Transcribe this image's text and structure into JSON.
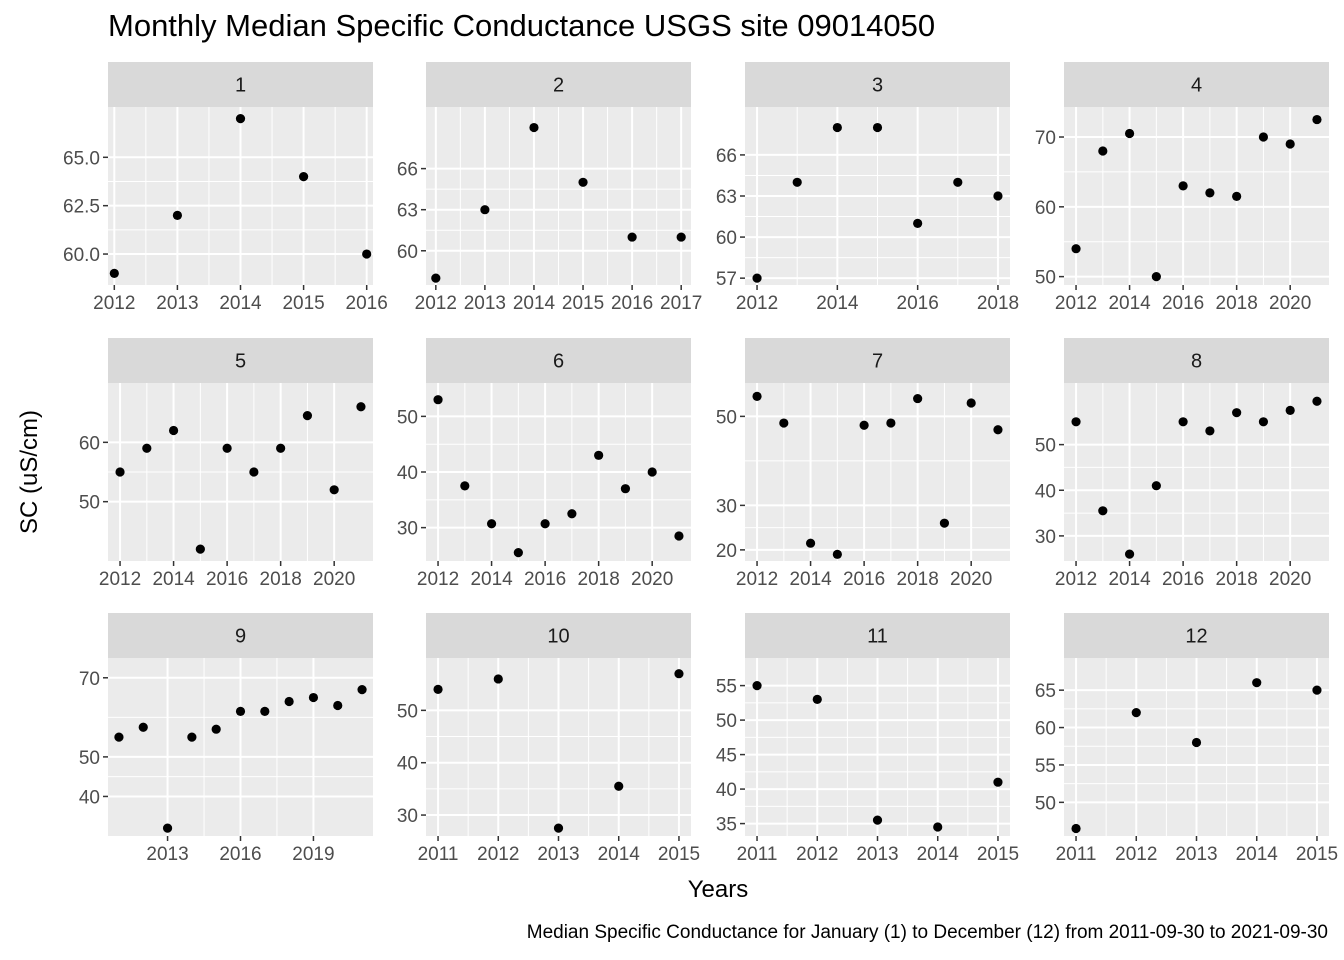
{
  "chart_data": {
    "type": "scatter",
    "title": "Monthly Median Specific Conductance USGS site 09014050",
    "xlabel": "Years",
    "ylabel": "SC (uS/cm)",
    "caption": "Median Specific Conductance for January (1) to December (12) from 2011-09-30 to 2021-09-30",
    "point_color": "#000000",
    "panel_background": "#EBEBEB",
    "strip_background": "#D9D9D9",
    "grid_color": "#FFFFFF",
    "facets": [
      {
        "label": "1",
        "xlim": [
          2011.9,
          2016.1
        ],
        "ylim": [
          58.4,
          67.6
        ],
        "xticks": [
          2012,
          2013,
          2014,
          2015,
          2016
        ],
        "xtick_labels": [
          "2012",
          "2013",
          "2014",
          "2015",
          "2016"
        ],
        "yticks": [
          60,
          62.5,
          65
        ],
        "ytick_labels": [
          "60.0",
          "62.5",
          "65.0"
        ],
        "points": [
          [
            2012,
            59
          ],
          [
            2013,
            62
          ],
          [
            2014,
            67
          ],
          [
            2015,
            64
          ],
          [
            2016,
            60
          ]
        ]
      },
      {
        "label": "2",
        "xlim": [
          2011.8,
          2017.2
        ],
        "ylim": [
          57.5,
          70.5
        ],
        "xticks": [
          2012,
          2013,
          2014,
          2015,
          2016,
          2017
        ],
        "xtick_labels": [
          "2012",
          "2013",
          "2014",
          "2015",
          "2016",
          "2017"
        ],
        "yticks": [
          60,
          63,
          66
        ],
        "ytick_labels": [
          "60",
          "63",
          "66"
        ],
        "points": [
          [
            2012,
            58
          ],
          [
            2013,
            63
          ],
          [
            2014,
            69
          ],
          [
            2015,
            65
          ],
          [
            2016,
            61
          ],
          [
            2017,
            61
          ]
        ]
      },
      {
        "label": "3",
        "xlim": [
          2011.7,
          2018.3
        ],
        "ylim": [
          56.5,
          69.5
        ],
        "xticks": [
          2012,
          2014,
          2016,
          2018
        ],
        "xtick_labels": [
          "2012",
          "2014",
          "2016",
          "2018"
        ],
        "yticks": [
          57,
          60,
          63,
          66
        ],
        "ytick_labels": [
          "57",
          "60",
          "63",
          "66"
        ],
        "points": [
          [
            2012,
            57
          ],
          [
            2013,
            64
          ],
          [
            2014,
            68
          ],
          [
            2015,
            68
          ],
          [
            2016,
            61
          ],
          [
            2017,
            64
          ],
          [
            2018,
            63
          ]
        ]
      },
      {
        "label": "4",
        "xlim": [
          2011.55,
          2021.45
        ],
        "ylim": [
          48.8,
          74.3
        ],
        "xticks": [
          2012,
          2014,
          2016,
          2018,
          2020
        ],
        "xtick_labels": [
          "2012",
          "2014",
          "2016",
          "2018",
          "2020"
        ],
        "yticks": [
          50,
          60,
          70
        ],
        "ytick_labels": [
          "50",
          "60",
          "70"
        ],
        "points": [
          [
            2012,
            54
          ],
          [
            2013,
            68
          ],
          [
            2014,
            70.5
          ],
          [
            2015,
            50
          ],
          [
            2016,
            63
          ],
          [
            2017,
            62
          ],
          [
            2018,
            61.5
          ],
          [
            2019,
            70
          ],
          [
            2020,
            69
          ],
          [
            2021,
            72.5
          ]
        ]
      },
      {
        "label": "5",
        "xlim": [
          2011.55,
          2021.45
        ],
        "ylim": [
          40,
          70
        ],
        "xticks": [
          2012,
          2014,
          2016,
          2018,
          2020
        ],
        "xtick_labels": [
          "2012",
          "2014",
          "2016",
          "2018",
          "2020"
        ],
        "yticks": [
          50,
          60
        ],
        "ytick_labels": [
          "50",
          "60"
        ],
        "points": [
          [
            2012,
            55
          ],
          [
            2013,
            59
          ],
          [
            2014,
            62
          ],
          [
            2015,
            42
          ],
          [
            2016,
            59
          ],
          [
            2017,
            55
          ],
          [
            2018,
            59
          ],
          [
            2019,
            64.5
          ],
          [
            2020,
            52
          ],
          [
            2021,
            66
          ]
        ]
      },
      {
        "label": "6",
        "xlim": [
          2011.55,
          2021.45
        ],
        "ylim": [
          24,
          56
        ],
        "xticks": [
          2012,
          2014,
          2016,
          2018,
          2020
        ],
        "xtick_labels": [
          "2012",
          "2014",
          "2016",
          "2018",
          "2020"
        ],
        "yticks": [
          30,
          40,
          50
        ],
        "ytick_labels": [
          "30",
          "40",
          "50"
        ],
        "points": [
          [
            2012,
            53
          ],
          [
            2013,
            37.5
          ],
          [
            2014,
            30.7
          ],
          [
            2015,
            25.5
          ],
          [
            2016,
            30.7
          ],
          [
            2017,
            32.5
          ],
          [
            2018,
            43
          ],
          [
            2019,
            37
          ],
          [
            2020,
            40
          ],
          [
            2021,
            28.5
          ]
        ]
      },
      {
        "label": "7",
        "xlim": [
          2011.55,
          2021.45
        ],
        "ylim": [
          17.5,
          57.5
        ],
        "xticks": [
          2012,
          2014,
          2016,
          2018,
          2020
        ],
        "xtick_labels": [
          "2012",
          "2014",
          "2016",
          "2018",
          "2020"
        ],
        "yticks": [
          20,
          30,
          50
        ],
        "ytick_labels": [
          "20",
          "30",
          "50"
        ],
        "points": [
          [
            2012,
            54.5
          ],
          [
            2013,
            48.5
          ],
          [
            2014,
            21.5
          ],
          [
            2015,
            19
          ],
          [
            2016,
            48
          ],
          [
            2017,
            48.5
          ],
          [
            2018,
            54
          ],
          [
            2019,
            26
          ],
          [
            2020,
            53
          ],
          [
            2021,
            47
          ]
        ]
      },
      {
        "label": "8",
        "xlim": [
          2011.55,
          2021.45
        ],
        "ylim": [
          24.5,
          63.5
        ],
        "xticks": [
          2012,
          2014,
          2016,
          2018,
          2020
        ],
        "xtick_labels": [
          "2012",
          "2014",
          "2016",
          "2018",
          "2020"
        ],
        "yticks": [
          30,
          40,
          50
        ],
        "ytick_labels": [
          "30",
          "40",
          "50"
        ],
        "points": [
          [
            2012,
            55
          ],
          [
            2013,
            35.5
          ],
          [
            2014,
            26
          ],
          [
            2015,
            41
          ],
          [
            2016,
            55
          ],
          [
            2017,
            53
          ],
          [
            2018,
            57
          ],
          [
            2019,
            55
          ],
          [
            2020,
            57.5
          ],
          [
            2021,
            59.5
          ]
        ]
      },
      {
        "label": "9",
        "xlim": [
          2010.55,
          2021.45
        ],
        "ylim": [
          30,
          75
        ],
        "xticks": [
          2013,
          2016,
          2019
        ],
        "xtick_labels": [
          "2013",
          "2016",
          "2019"
        ],
        "yticks": [
          40,
          50,
          70
        ],
        "ytick_labels": [
          "40",
          "50",
          "70"
        ],
        "points": [
          [
            2011,
            55
          ],
          [
            2012,
            57.5
          ],
          [
            2013,
            32
          ],
          [
            2014,
            55
          ],
          [
            2015,
            57
          ],
          [
            2016,
            61.5
          ],
          [
            2017,
            61.5
          ],
          [
            2018,
            64
          ],
          [
            2019,
            65
          ],
          [
            2020,
            63
          ],
          [
            2021,
            67
          ]
        ]
      },
      {
        "label": "10",
        "xlim": [
          2010.8,
          2015.2
        ],
        "ylim": [
          26,
          60
        ],
        "xticks": [
          2011,
          2012,
          2013,
          2014,
          2015
        ],
        "xtick_labels": [
          "2011",
          "2012",
          "2013",
          "2014",
          "2015"
        ],
        "yticks": [
          30,
          40,
          50
        ],
        "ytick_labels": [
          "30",
          "40",
          "50"
        ],
        "points": [
          [
            2011,
            54
          ],
          [
            2012,
            56
          ],
          [
            2013,
            27.5
          ],
          [
            2014,
            35.5
          ],
          [
            2015,
            57
          ]
        ]
      },
      {
        "label": "11",
        "xlim": [
          2010.8,
          2015.2
        ],
        "ylim": [
          33.2,
          59
        ],
        "xticks": [
          2011,
          2012,
          2013,
          2014,
          2015
        ],
        "xtick_labels": [
          "2011",
          "2012",
          "2013",
          "2014",
          "2015"
        ],
        "yticks": [
          35,
          40,
          45,
          50,
          55
        ],
        "ytick_labels": [
          "35",
          "40",
          "45",
          "50",
          "55"
        ],
        "points": [
          [
            2011,
            55
          ],
          [
            2012,
            53
          ],
          [
            2013,
            35.5
          ],
          [
            2014,
            34.5
          ],
          [
            2015,
            41
          ]
        ]
      },
      {
        "label": "12",
        "xlim": [
          2010.8,
          2015.2
        ],
        "ylim": [
          45.5,
          69.3
        ],
        "xticks": [
          2011,
          2012,
          2013,
          2014,
          2015
        ],
        "xtick_labels": [
          "2011",
          "2012",
          "2013",
          "2014",
          "2015"
        ],
        "yticks": [
          50,
          55,
          60,
          65
        ],
        "ytick_labels": [
          "50",
          "55",
          "60",
          "65"
        ],
        "points": [
          [
            2011,
            46.5
          ],
          [
            2012,
            62
          ],
          [
            2013,
            58
          ],
          [
            2014,
            66
          ],
          [
            2015,
            65
          ]
        ]
      }
    ]
  }
}
